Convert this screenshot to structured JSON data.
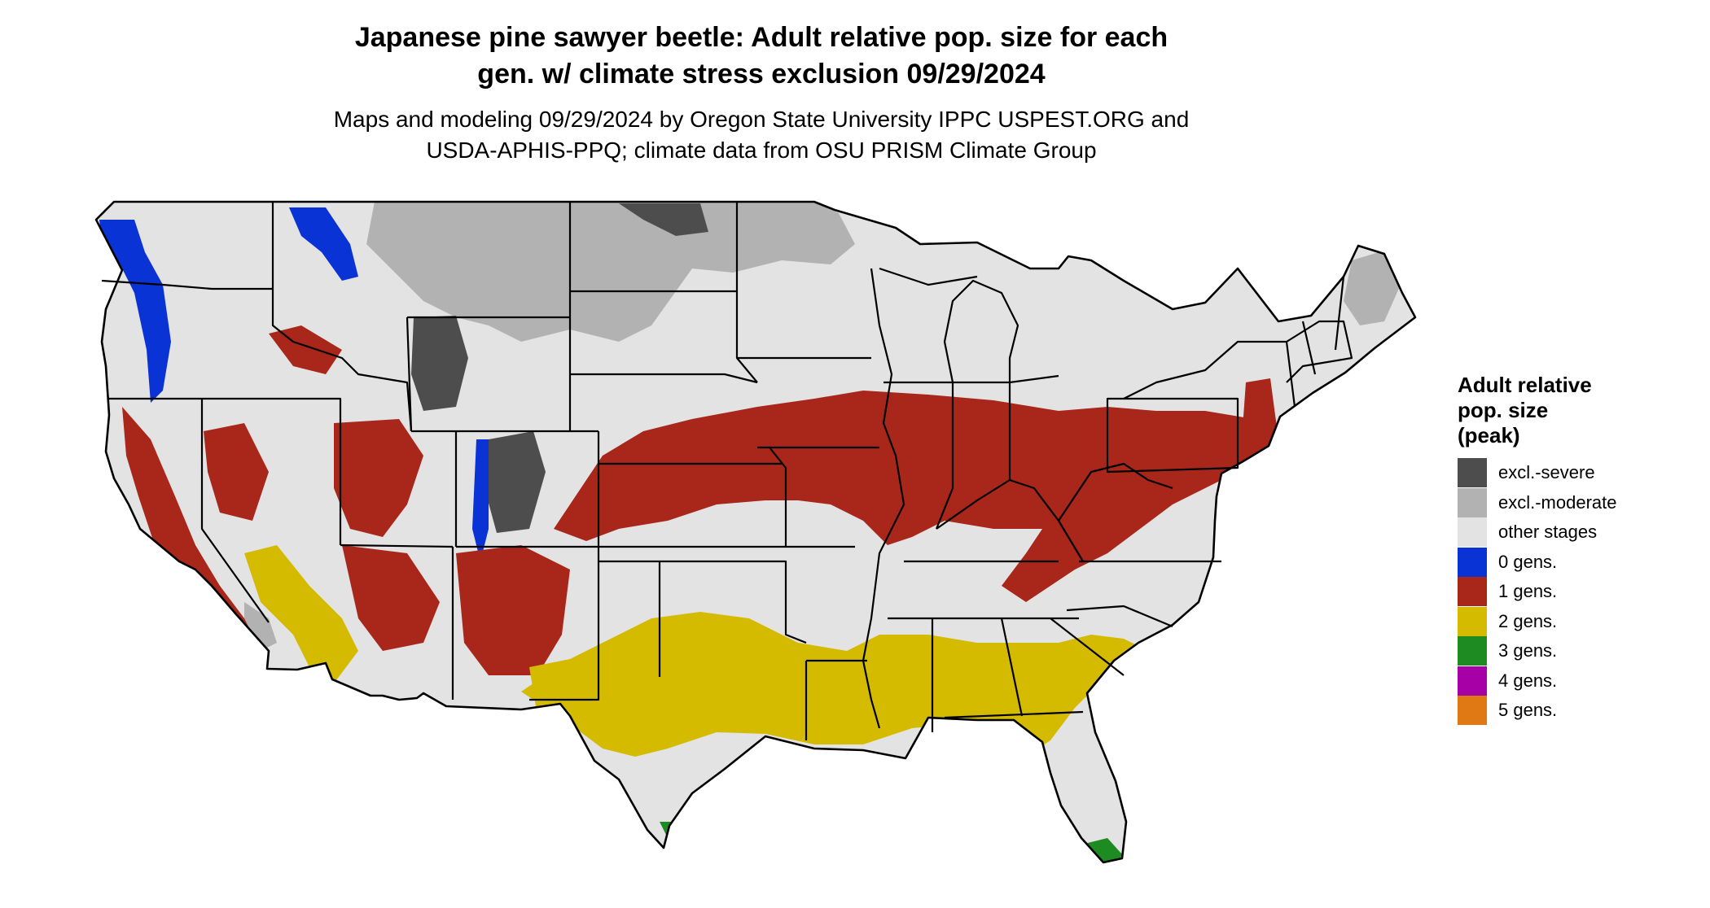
{
  "title": {
    "line1": "Japanese pine sawyer beetle: Adult relative pop. size for each",
    "line2": "gen. w/ climate stress exclusion 09/29/2024"
  },
  "subtitle": {
    "line1": "Maps and modeling 09/29/2024 by Oregon State University IPPC USPEST.ORG and",
    "line2": "USDA-APHIS-PPQ; climate data from OSU PRISM Climate Group"
  },
  "map": {
    "region": "Contiguous United States",
    "base_color": "#e3e3e3",
    "border_color": "#000000"
  },
  "legend": {
    "title_line1": "Adult relative",
    "title_line2": "pop. size",
    "title_line3": "(peak)",
    "items": [
      {
        "label": "excl.-severe",
        "color": "#4d4d4d"
      },
      {
        "label": "excl.-moderate",
        "color": "#b2b2b2"
      },
      {
        "label": "other stages",
        "color": "#e3e3e3"
      },
      {
        "label": "0 gens.",
        "color": "#0a33d6"
      },
      {
        "label": "1 gens.",
        "color": "#a8271a"
      },
      {
        "label": "2 gens.",
        "color": "#d4bb00"
      },
      {
        "label": "3 gens.",
        "color": "#1e8a22"
      },
      {
        "label": "4 gens.",
        "color": "#a600a6"
      },
      {
        "label": "5 gens.",
        "color": "#e07813"
      }
    ]
  }
}
